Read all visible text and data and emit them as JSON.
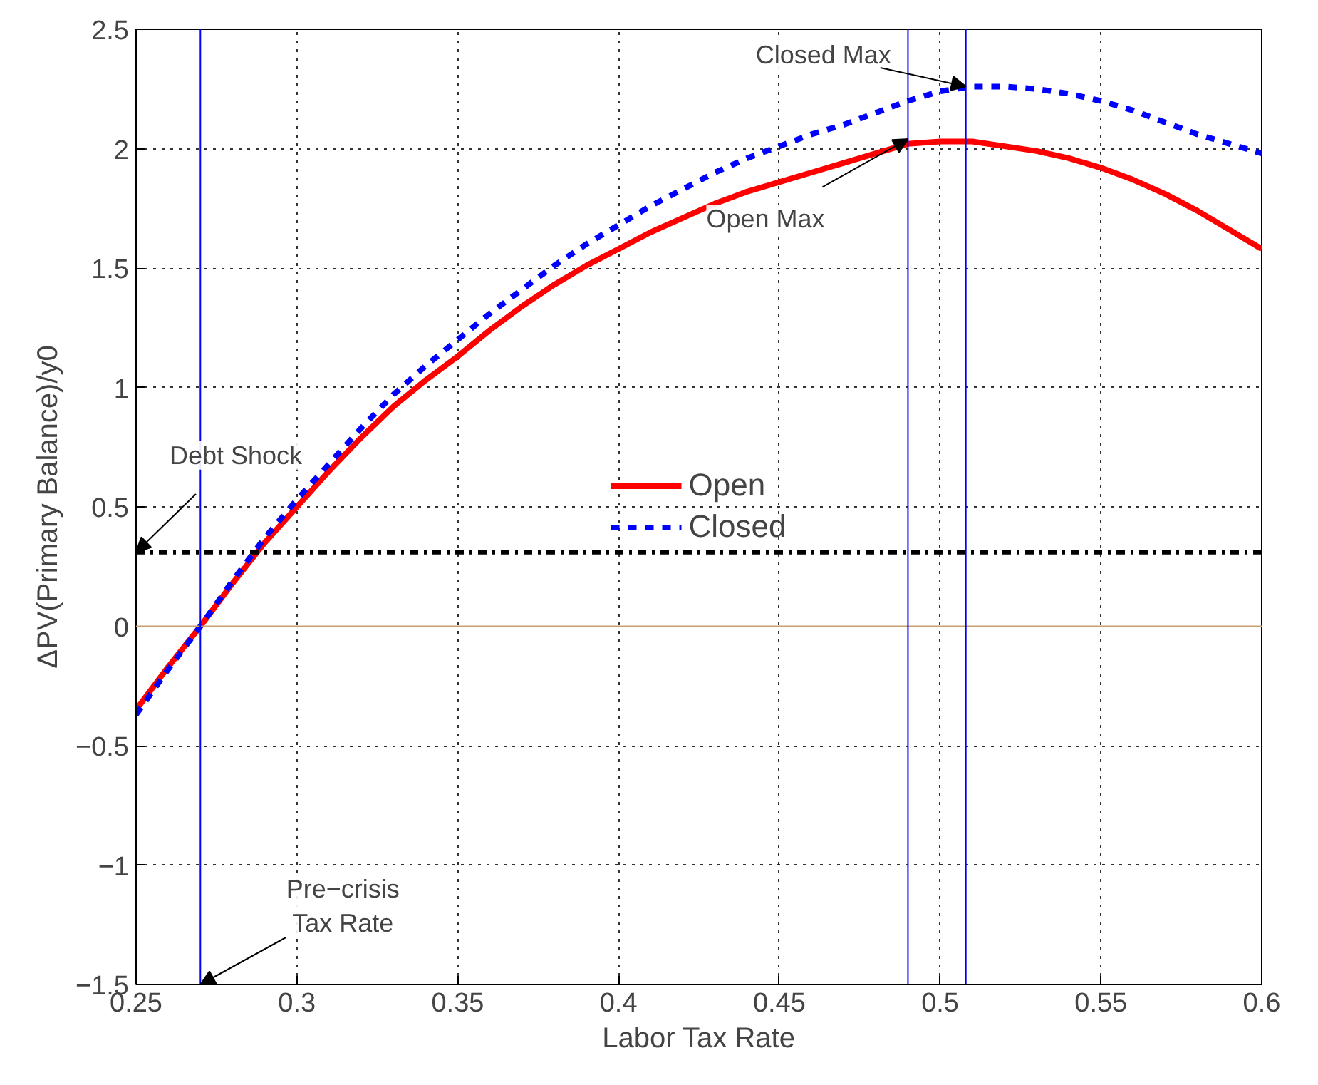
{
  "chart_data": {
    "type": "line",
    "xlabel": "Labor Tax Rate",
    "ylabel": "ΔPV(Primary Balance)/y0",
    "x": [
      0.25,
      0.26,
      0.27,
      0.28,
      0.29,
      0.3,
      0.31,
      0.32,
      0.33,
      0.34,
      0.35,
      0.36,
      0.37,
      0.38,
      0.39,
      0.4,
      0.41,
      0.42,
      0.43,
      0.44,
      0.45,
      0.46,
      0.47,
      0.48,
      0.49,
      0.5,
      0.51,
      0.52,
      0.53,
      0.54,
      0.55,
      0.56,
      0.57,
      0.58,
      0.59,
      0.6
    ],
    "series": [
      {
        "name": "Open",
        "color": "#ff0000",
        "line_style": "solid",
        "values": [
          -0.35,
          -0.17,
          0.0,
          0.18,
          0.35,
          0.5,
          0.65,
          0.79,
          0.92,
          1.03,
          1.13,
          1.24,
          1.34,
          1.43,
          1.51,
          1.58,
          1.65,
          1.71,
          1.77,
          1.82,
          1.86,
          1.9,
          1.94,
          1.98,
          2.02,
          2.03,
          2.03,
          2.01,
          1.99,
          1.96,
          1.92,
          1.87,
          1.81,
          1.74,
          1.66,
          1.58
        ]
      },
      {
        "name": "Closed",
        "color": "#0000ff",
        "line_style": "dashed",
        "values": [
          -0.37,
          -0.18,
          0.0,
          0.19,
          0.37,
          0.53,
          0.68,
          0.83,
          0.97,
          1.09,
          1.2,
          1.31,
          1.41,
          1.51,
          1.6,
          1.68,
          1.76,
          1.83,
          1.9,
          1.96,
          2.01,
          2.06,
          2.1,
          2.15,
          2.2,
          2.24,
          2.26,
          2.26,
          2.25,
          2.23,
          2.2,
          2.16,
          2.11,
          2.06,
          2.02,
          1.98
        ]
      }
    ],
    "xlim": [
      0.25,
      0.6
    ],
    "ylim": [
      -1.5,
      2.5
    ],
    "xticks": [
      0.25,
      0.3,
      0.35,
      0.4,
      0.45,
      0.5,
      0.55,
      0.6
    ],
    "yticks": [
      -1.5,
      -1,
      -0.5,
      0,
      0.5,
      1,
      1.5,
      2,
      2.5
    ],
    "grid": true,
    "legend": "center",
    "ref_lines": [
      {
        "axis": "y",
        "value": 0,
        "color": "#c8a070",
        "line_style": "solid"
      },
      {
        "axis": "y",
        "value": 0.31,
        "color": "#000000",
        "line_style": "dashdot"
      },
      {
        "axis": "x",
        "value": 0.27,
        "color": "#0000ff",
        "line_style": "solid"
      },
      {
        "axis": "x",
        "value": 0.49,
        "color": "#0000ff",
        "line_style": "solid"
      },
      {
        "axis": "x",
        "value": 0.508,
        "color": "#0000ff",
        "line_style": "solid"
      }
    ],
    "annotations": [
      {
        "text": "Closed Max",
        "x": 0.508,
        "y": 2.26
      },
      {
        "text": "Open Max",
        "x": 0.49,
        "y": 2.04
      },
      {
        "text": "Debt Shock",
        "x": 0.25,
        "y": 0.31
      },
      {
        "text": "Pre−crisis\nTax Rate",
        "x": 0.27,
        "y": -1.5
      }
    ]
  }
}
